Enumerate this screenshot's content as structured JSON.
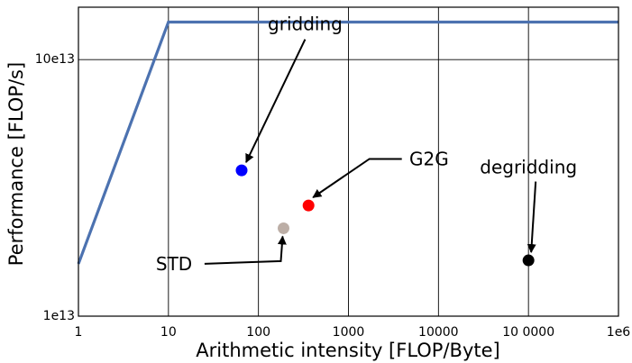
{
  "chart_data": {
    "type": "scatter",
    "title": "",
    "xlabel": "Arithmetic intensity [FLOP/Byte]",
    "ylabel": "Performance [FLOP/s]",
    "x_scale": "log",
    "y_scale": "log",
    "xlim": [
      1,
      1000000
    ],
    "ylim": [
      10000000000000,
      160000000000000
    ],
    "grid": true,
    "x_ticks": [
      {
        "value": 1,
        "label": "1"
      },
      {
        "value": 10,
        "label": "10"
      },
      {
        "value": 100,
        "label": "100"
      },
      {
        "value": 1000,
        "label": "1000"
      },
      {
        "value": 10000,
        "label": "10000"
      },
      {
        "value": 100000,
        "label": "10 0000"
      },
      {
        "value": 1000000,
        "label": "1e6"
      }
    ],
    "y_ticks": [
      {
        "value": 10000000000000,
        "label": "1e13"
      },
      {
        "value": 100000000000000,
        "label": "10e13"
      }
    ],
    "roofline": {
      "color": "#4c72b0",
      "points": [
        {
          "x": 1,
          "y": 16000000000000
        },
        {
          "x": 10,
          "y": 140000000000000
        },
        {
          "x": 1000000,
          "y": 140000000000000
        }
      ]
    },
    "points": [
      {
        "name": "gridding",
        "x": 65,
        "y": 37000000000000,
        "color": "#0000ff",
        "label_x": 330,
        "label_y": 130000000000000
      },
      {
        "name": "G2G",
        "x": 360,
        "y": 27000000000000,
        "color": "#ff0000",
        "label_x": 13000,
        "label_y": 41000000000000
      },
      {
        "name": "STD",
        "x": 190,
        "y": 22000000000000,
        "color": "#bcaea6",
        "label_x": 20,
        "label_y": 16000000000000
      },
      {
        "name": "degridding",
        "x": 100000,
        "y": 16500000000000,
        "color": "#000000",
        "label_x": 100000,
        "label_y": 36000000000000
      }
    ]
  }
}
